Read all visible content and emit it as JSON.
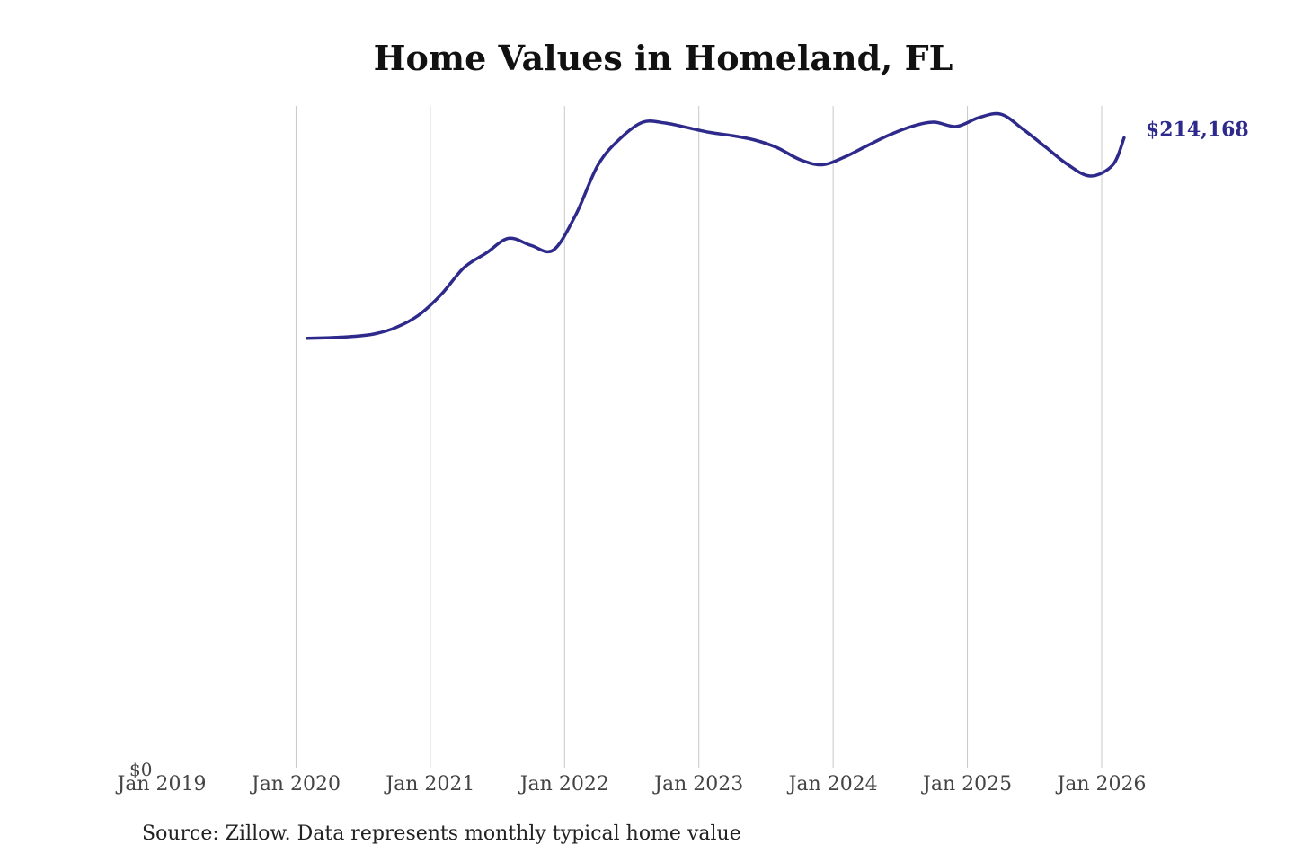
{
  "chart_data": {
    "type": "line",
    "title": "Home Values in Homeland, FL",
    "xlabel": "",
    "ylabel": "",
    "y_tick_label": "$0",
    "x_ticks": [
      "Jan 2019",
      "Jan 2020",
      "Jan 2021",
      "Jan 2022",
      "Jan 2023",
      "Jan 2024",
      "Jan 2025",
      "Jan 2026"
    ],
    "xlim": [
      "2019-01",
      "2026-04"
    ],
    "ylim": [
      0,
      225000
    ],
    "grid": "vertical",
    "line_color": "#2e2a8c",
    "grid_color": "#c8c8c8",
    "end_label": "$214,168",
    "series": [
      {
        "x": [
          "2020-02",
          "2020-04",
          "2020-06",
          "2020-08",
          "2020-10",
          "2020-12",
          "2021-02",
          "2021-04",
          "2021-06",
          "2021-08",
          "2021-10",
          "2021-12",
          "2022-02",
          "2022-04",
          "2022-06",
          "2022-08",
          "2022-10",
          "2022-12",
          "2023-02",
          "2023-04",
          "2023-06",
          "2023-08",
          "2023-10",
          "2023-12",
          "2024-02",
          "2024-04",
          "2024-06",
          "2024-08",
          "2024-10",
          "2024-12",
          "2025-02",
          "2025-04",
          "2025-06",
          "2025-08",
          "2025-10",
          "2025-12",
          "2026-02",
          "2026-03"
        ],
        "y": [
          146000,
          146200,
          146600,
          147500,
          149800,
          154000,
          161000,
          170000,
          175000,
          180000,
          177600,
          176000,
          188000,
          205000,
          214000,
          219500,
          219200,
          217600,
          216000,
          214900,
          213400,
          210800,
          206800,
          205000,
          207600,
          211400,
          215100,
          218000,
          219500,
          218000,
          221000,
          222200,
          217000,
          211000,
          205000,
          201200,
          205000,
          214168
        ]
      }
    ],
    "source": "Source: Zillow. Data represents monthly typical home value"
  }
}
